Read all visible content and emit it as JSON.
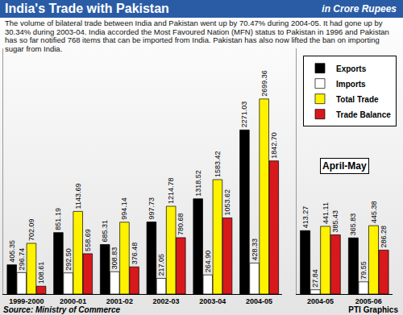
{
  "chart_data": [
    {
      "type": "bar",
      "title": "India's Trade with Pakistan",
      "subtitle": "in Crore Rupees",
      "description": "The volume of bilateral trade between India and Pakistan went up by 70.47% during 2004-05. It had gone up by 30.34% during 2003-04.  India accorded the Most Favoured Nation (MFN) status to Pakistan in 1996 and Pakistan has so far notified 768 items that can be imported from India. Pakistan has also now lifted the ban on importing sugar from India.",
      "source": "Source: Ministry of Commerce",
      "credit": "PTI Graphics",
      "categories": [
        "1999-2000",
        "2000-01",
        "2001-02",
        "2002-03",
        "2003-04",
        "2004-05"
      ],
      "series": [
        {
          "name": "Exports",
          "color": "#000000",
          "values": [
            405.35,
            851.19,
            685.31,
            997.73,
            1318.52,
            2271.03
          ],
          "value_labels": [
            "405.35",
            "851.19",
            "685.31",
            "997.73",
            "1318.52",
            "2271.03"
          ]
        },
        {
          "name": "Imports",
          "color": "#ffffff",
          "values": [
            296.74,
            292.5,
            308.83,
            217.05,
            264.9,
            428.33
          ],
          "value_labels": [
            "296.74",
            "292.50",
            "308.83",
            "217.05",
            "264.90",
            "428.33"
          ]
        },
        {
          "name": "Total Trade",
          "color": "#fff200",
          "values": [
            702.09,
            1143.69,
            994.14,
            1214.78,
            1583.42,
            2699.36
          ],
          "value_labels": [
            "702.09",
            "1143.69",
            "994.14",
            "1214.78",
            "1583.42",
            "2699.36"
          ]
        },
        {
          "name": "Trade Balance",
          "color": "#d7191c",
          "values": [
            108.61,
            558.69,
            376.48,
            780.68,
            1053.62,
            1842.7
          ],
          "value_labels": [
            "108.61",
            "558.69",
            "376.48",
            "780.68",
            "1053.62",
            "1842.70"
          ]
        }
      ],
      "ylim": [
        0,
        3400
      ],
      "yticks": [],
      "tick_labels": "x",
      "data_labels": true,
      "grid": false,
      "legend": "upper right"
    },
    {
      "type": "bar",
      "title": "April-May",
      "categories": [
        "2004-05",
        "2005-06"
      ],
      "series": [
        {
          "name": "Exports",
          "color": "#000000",
          "values": [
            413.27,
            365.83
          ],
          "value_labels": [
            "413.27",
            "365.83"
          ]
        },
        {
          "name": "Imports",
          "color": "#ffffff",
          "values": [
            27.84,
            79.55
          ],
          "value_labels": [
            "27.84",
            "79.55"
          ]
        },
        {
          "name": "Total Trade",
          "color": "#fff200",
          "values": [
            441.11,
            445.38
          ],
          "value_labels": [
            "441.11",
            "445.38"
          ]
        },
        {
          "name": "Trade Balance",
          "color": "#d7191c",
          "values": [
            385.43,
            286.28
          ],
          "value_labels": [
            "385.43",
            "286.28"
          ]
        }
      ],
      "ylim": [
        0,
        1600
      ],
      "yticks": [],
      "tick_labels": "x",
      "data_labels": true,
      "grid": false
    }
  ]
}
